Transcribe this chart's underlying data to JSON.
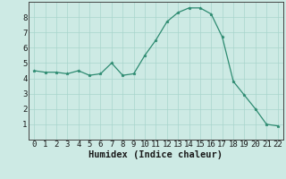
{
  "xlabel": "Humidex (Indice chaleur)",
  "x": [
    0,
    1,
    2,
    3,
    4,
    5,
    6,
    7,
    8,
    9,
    10,
    11,
    12,
    13,
    14,
    15,
    16,
    17,
    18,
    19,
    20,
    21,
    22
  ],
  "y": [
    4.5,
    4.4,
    4.4,
    4.3,
    4.5,
    4.2,
    4.3,
    5.0,
    4.2,
    4.3,
    5.5,
    6.5,
    7.7,
    8.3,
    8.6,
    8.6,
    8.2,
    6.7,
    3.8,
    2.9,
    2.0,
    1.0,
    0.9
  ],
  "ylim": [
    0,
    9
  ],
  "yticks": [
    1,
    2,
    3,
    4,
    5,
    6,
    7,
    8
  ],
  "xticks": [
    0,
    1,
    2,
    3,
    4,
    5,
    6,
    7,
    8,
    9,
    10,
    11,
    12,
    13,
    14,
    15,
    16,
    17,
    18,
    19,
    20,
    21,
    22
  ],
  "line_color": "#2e8b71",
  "marker": "*",
  "marker_size": 2.5,
  "bg_color": "#cdeae4",
  "grid_color": "#a8d5cc",
  "xlabel_fontsize": 7.5,
  "tick_fontsize": 6.5,
  "line_width": 0.9
}
